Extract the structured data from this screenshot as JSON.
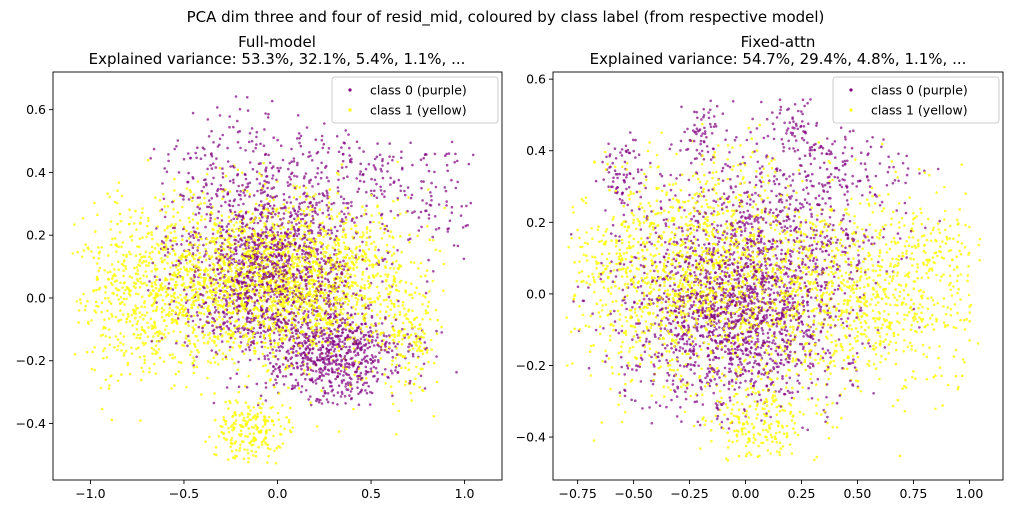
{
  "figure": {
    "suptitle": "PCA dim three and four of resid_mid, coloured by class label (from respective model)"
  },
  "chart_data": [
    {
      "type": "scatter",
      "title": "Full-model",
      "subtitle": "Explained variance: 53.3%, 32.1%, 5.4%, 1.1%,  ...",
      "xlabel": "",
      "ylabel": "",
      "xlim": [
        -1.2,
        1.2
      ],
      "ylim": [
        -0.58,
        0.72
      ],
      "xticks": [
        -1.0,
        -0.5,
        0.0,
        0.5,
        1.0
      ],
      "xtick_labels": [
        "−1.0",
        "−0.5",
        "0.0",
        "0.5",
        "1.0"
      ],
      "yticks": [
        -0.4,
        -0.2,
        0.0,
        0.2,
        0.4,
        0.6
      ],
      "ytick_labels": [
        "−0.4",
        "−0.2",
        "0.0",
        "0.2",
        "0.4",
        "0.6"
      ],
      "grid": false,
      "legend_position": "top-right",
      "series": [
        {
          "name": "class 0 (purple)",
          "color": "#800080",
          "cluster_centers": [
            {
              "x": -0.05,
              "y": 0.1,
              "sx": 0.25,
              "sy": 0.15,
              "n": 1500
            },
            {
              "x": 0.3,
              "y": -0.18,
              "sx": 0.2,
              "sy": 0.08,
              "n": 700
            },
            {
              "x": -0.2,
              "y": 0.45,
              "sx": 0.2,
              "sy": 0.1,
              "n": 160
            },
            {
              "x": 0.45,
              "y": 0.4,
              "sx": 0.22,
              "sy": 0.07,
              "n": 140
            },
            {
              "x": 0.85,
              "y": 0.3,
              "sx": 0.1,
              "sy": 0.1,
              "n": 70
            }
          ],
          "range_x": [
            -0.7,
            1.05
          ],
          "range_y": [
            -0.35,
            0.65
          ]
        },
        {
          "name": "class 1 (yellow)",
          "color": "#ffff00",
          "cluster_centers": [
            {
              "x": -0.2,
              "y": 0.05,
              "sx": 0.35,
              "sy": 0.14,
              "n": 1500
            },
            {
              "x": 0.25,
              "y": 0.05,
              "sx": 0.3,
              "sy": 0.12,
              "n": 900
            },
            {
              "x": -0.75,
              "y": 0.0,
              "sx": 0.18,
              "sy": 0.13,
              "n": 350
            },
            {
              "x": -0.15,
              "y": -0.42,
              "sx": 0.1,
              "sy": 0.05,
              "n": 200
            },
            {
              "x": 0.7,
              "y": -0.15,
              "sx": 0.07,
              "sy": 0.08,
              "n": 120
            }
          ],
          "range_x": [
            -1.1,
            0.9
          ],
          "range_y": [
            -0.53,
            0.45
          ]
        }
      ]
    },
    {
      "type": "scatter",
      "title": "Fixed-attn",
      "subtitle": "Explained variance: 54.7%, 29.4%, 4.8%, 1.1%,  ...",
      "xlabel": "",
      "ylabel": "",
      "xlim": [
        -0.86,
        1.15
      ],
      "ylim": [
        -0.52,
        0.62
      ],
      "xticks": [
        -0.75,
        -0.5,
        -0.25,
        0.0,
        0.25,
        0.5,
        0.75,
        1.0
      ],
      "xtick_labels": [
        "−0.75",
        "−0.50",
        "−0.25",
        "0.00",
        "0.25",
        "0.50",
        "0.75",
        "1.00"
      ],
      "yticks": [
        -0.4,
        -0.2,
        0.0,
        0.2,
        0.4,
        0.6
      ],
      "ytick_labels": [
        "−0.4",
        "−0.2",
        "0.0",
        "0.2",
        "0.4",
        "0.6"
      ],
      "grid": false,
      "legend_position": "top-right",
      "series": [
        {
          "name": "class 0 (purple)",
          "color": "#800080",
          "cluster_centers": [
            {
              "x": -0.05,
              "y": -0.05,
              "sx": 0.25,
              "sy": 0.14,
              "n": 1700
            },
            {
              "x": 0.15,
              "y": 0.2,
              "sx": 0.25,
              "sy": 0.12,
              "n": 500
            },
            {
              "x": -0.55,
              "y": 0.33,
              "sx": 0.05,
              "sy": 0.05,
              "n": 80
            },
            {
              "x": -0.2,
              "y": 0.45,
              "sx": 0.05,
              "sy": 0.05,
              "n": 60
            },
            {
              "x": 0.22,
              "y": 0.48,
              "sx": 0.05,
              "sy": 0.05,
              "n": 60
            },
            {
              "x": 0.45,
              "y": 0.35,
              "sx": 0.15,
              "sy": 0.05,
              "n": 100
            }
          ],
          "range_x": [
            -0.78,
            0.9
          ],
          "range_y": [
            -0.38,
            0.55
          ]
        },
        {
          "name": "class 1 (yellow)",
          "color": "#ffff00",
          "cluster_centers": [
            {
              "x": -0.25,
              "y": 0.05,
              "sx": 0.3,
              "sy": 0.15,
              "n": 1500
            },
            {
              "x": 0.45,
              "y": 0.0,
              "sx": 0.3,
              "sy": 0.14,
              "n": 900
            },
            {
              "x": 0.05,
              "y": -0.36,
              "sx": 0.12,
              "sy": 0.05,
              "n": 200
            },
            {
              "x": 0.8,
              "y": 0.05,
              "sx": 0.12,
              "sy": 0.1,
              "n": 150
            }
          ],
          "range_x": [
            -0.8,
            1.05
          ],
          "range_y": [
            -0.47,
            0.48
          ]
        }
      ]
    }
  ]
}
